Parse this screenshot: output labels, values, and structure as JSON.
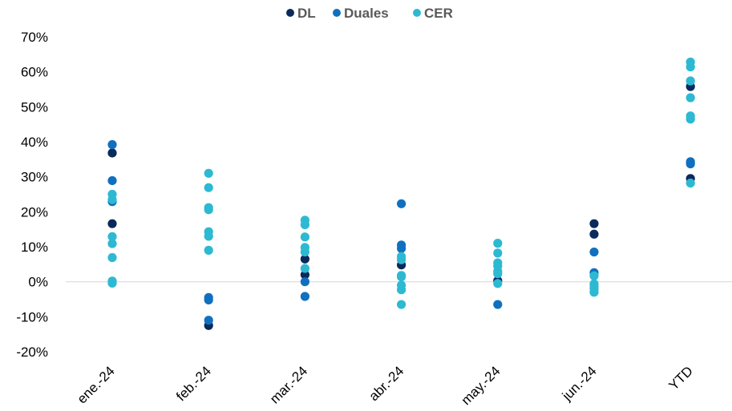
{
  "chart_data": {
    "type": "scatter",
    "categories": [
      "ene.-24",
      "feb.-24",
      "mar.-24",
      "abr.-24",
      "may.-24",
      "jun.-24",
      "YTD"
    ],
    "y_ticks": [
      "70%",
      "60%",
      "50%",
      "40%",
      "30%",
      "20%",
      "10%",
      "0%",
      "-10%",
      "-20%"
    ],
    "ylim": [
      -20,
      70
    ],
    "legend_position": "top-center",
    "grid": false,
    "series": [
      {
        "name": "DL",
        "color": "#0B2A5C",
        "points": [
          {
            "x": "ene.-24",
            "y": 36.8
          },
          {
            "x": "ene.-24",
            "y": 16.6
          },
          {
            "x": "feb.-24",
            "y": -12.5
          },
          {
            "x": "mar.-24",
            "y": 6.5
          },
          {
            "x": "mar.-24",
            "y": 2.0
          },
          {
            "x": "abr.-24",
            "y": 4.8
          },
          {
            "x": "may.-24",
            "y": 0.3
          },
          {
            "x": "jun.-24",
            "y": 16.6
          },
          {
            "x": "jun.-24",
            "y": 13.6
          },
          {
            "x": "YTD",
            "y": 55.8
          },
          {
            "x": "YTD",
            "y": 29.5
          }
        ]
      },
      {
        "name": "Duales",
        "color": "#1070BF",
        "points": [
          {
            "x": "ene.-24",
            "y": 39.2
          },
          {
            "x": "ene.-24",
            "y": 28.9
          },
          {
            "x": "ene.-24",
            "y": 22.9
          },
          {
            "x": "feb.-24",
            "y": -4.5
          },
          {
            "x": "feb.-24",
            "y": -5.2
          },
          {
            "x": "feb.-24",
            "y": -11.0
          },
          {
            "x": "mar.-24",
            "y": 0.0
          },
          {
            "x": "mar.-24",
            "y": -4.2
          },
          {
            "x": "abr.-24",
            "y": 22.3
          },
          {
            "x": "abr.-24",
            "y": 10.5
          },
          {
            "x": "abr.-24",
            "y": 9.5
          },
          {
            "x": "may.-24",
            "y": -6.5
          },
          {
            "x": "jun.-24",
            "y": 8.5
          },
          {
            "x": "jun.-24",
            "y": 2.6
          },
          {
            "x": "YTD",
            "y": 34.3
          },
          {
            "x": "YTD",
            "y": 33.7
          }
        ]
      },
      {
        "name": "CER",
        "color": "#2DB9D2",
        "points": [
          {
            "x": "ene.-24",
            "y": 25.0
          },
          {
            "x": "ene.-24",
            "y": 23.5
          },
          {
            "x": "ene.-24",
            "y": 12.9
          },
          {
            "x": "ene.-24",
            "y": 10.9
          },
          {
            "x": "ene.-24",
            "y": 6.9
          },
          {
            "x": "ene.-24",
            "y": 0.2
          },
          {
            "x": "ene.-24",
            "y": -0.4
          },
          {
            "x": "feb.-24",
            "y": 31.0
          },
          {
            "x": "feb.-24",
            "y": 26.9
          },
          {
            "x": "feb.-24",
            "y": 21.2
          },
          {
            "x": "feb.-24",
            "y": 20.6
          },
          {
            "x": "feb.-24",
            "y": 14.3
          },
          {
            "x": "feb.-24",
            "y": 13.0
          },
          {
            "x": "feb.-24",
            "y": 9.0
          },
          {
            "x": "mar.-24",
            "y": 17.6
          },
          {
            "x": "mar.-24",
            "y": 16.3
          },
          {
            "x": "mar.-24",
            "y": 12.8
          },
          {
            "x": "mar.-24",
            "y": 9.8
          },
          {
            "x": "mar.-24",
            "y": 8.5
          },
          {
            "x": "mar.-24",
            "y": 3.8
          },
          {
            "x": "abr.-24",
            "y": 7.2
          },
          {
            "x": "abr.-24",
            "y": 6.3
          },
          {
            "x": "abr.-24",
            "y": 1.8
          },
          {
            "x": "abr.-24",
            "y": 1.4
          },
          {
            "x": "abr.-24",
            "y": -1.0
          },
          {
            "x": "abr.-24",
            "y": -2.3
          },
          {
            "x": "abr.-24",
            "y": -6.5
          },
          {
            "x": "may.-24",
            "y": 11.0
          },
          {
            "x": "may.-24",
            "y": 8.2
          },
          {
            "x": "may.-24",
            "y": 5.4
          },
          {
            "x": "may.-24",
            "y": 4.5
          },
          {
            "x": "may.-24",
            "y": 3.0
          },
          {
            "x": "may.-24",
            "y": 2.3
          },
          {
            "x": "may.-24",
            "y": -0.5
          },
          {
            "x": "jun.-24",
            "y": 1.7
          },
          {
            "x": "jun.-24",
            "y": -0.6
          },
          {
            "x": "jun.-24",
            "y": -1.3
          },
          {
            "x": "jun.-24",
            "y": -2.0
          },
          {
            "x": "jun.-24",
            "y": -3.0
          },
          {
            "x": "YTD",
            "y": 62.8
          },
          {
            "x": "YTD",
            "y": 61.4
          },
          {
            "x": "YTD",
            "y": 57.4
          },
          {
            "x": "YTD",
            "y": 52.6
          },
          {
            "x": "YTD",
            "y": 47.4
          },
          {
            "x": "YTD",
            "y": 46.5
          },
          {
            "x": "YTD",
            "y": 28.2
          }
        ]
      }
    ]
  }
}
